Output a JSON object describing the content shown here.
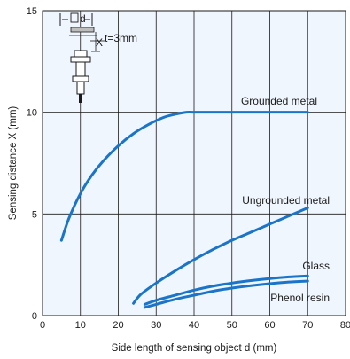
{
  "chart_data": {
    "type": "line",
    "xlabel": "Side length of sensing object d (mm)",
    "ylabel": "Sensing distance X (mm)",
    "xlim": [
      0,
      80
    ],
    "ylim": [
      0,
      15
    ],
    "x_ticks": [
      0,
      10,
      20,
      30,
      40,
      50,
      60,
      70,
      80
    ],
    "y_ticks": [
      0,
      5,
      10,
      15
    ],
    "grid": true,
    "plot_background": "#f0f6fd",
    "line_color": "#1a74c9",
    "series": [
      {
        "name": "Grounded metal",
        "x": [
          5,
          7,
          10,
          13,
          16,
          20,
          24,
          28,
          32,
          35,
          38,
          40,
          45,
          50,
          55,
          60,
          65,
          70
        ],
        "y": [
          3.7,
          4.8,
          6.0,
          6.9,
          7.6,
          8.35,
          8.95,
          9.4,
          9.75,
          9.9,
          10.0,
          10.0,
          10.0,
          10.0,
          10.0,
          10.0,
          10.0,
          10.0
        ]
      },
      {
        "name": "Ungrounded metal",
        "x": [
          24,
          26,
          30,
          35,
          40,
          45,
          50,
          55,
          60,
          65,
          70
        ],
        "y": [
          0.6,
          1.05,
          1.6,
          2.2,
          2.75,
          3.25,
          3.7,
          4.1,
          4.5,
          4.9,
          5.3
        ]
      },
      {
        "name": "Glass",
        "x": [
          27,
          30,
          35,
          40,
          45,
          50,
          55,
          60,
          65,
          70
        ],
        "y": [
          0.55,
          0.75,
          1.0,
          1.25,
          1.45,
          1.6,
          1.72,
          1.82,
          1.9,
          1.95
        ]
      },
      {
        "name": "Phenol resin",
        "x": [
          27,
          30,
          35,
          40,
          45,
          50,
          55,
          60,
          65,
          70
        ],
        "y": [
          0.4,
          0.55,
          0.8,
          1.0,
          1.2,
          1.35,
          1.47,
          1.57,
          1.65,
          1.7
        ]
      }
    ],
    "inset": {
      "dimension_label": "d",
      "distance_label": "X",
      "thickness_label": "t=3mm"
    }
  }
}
